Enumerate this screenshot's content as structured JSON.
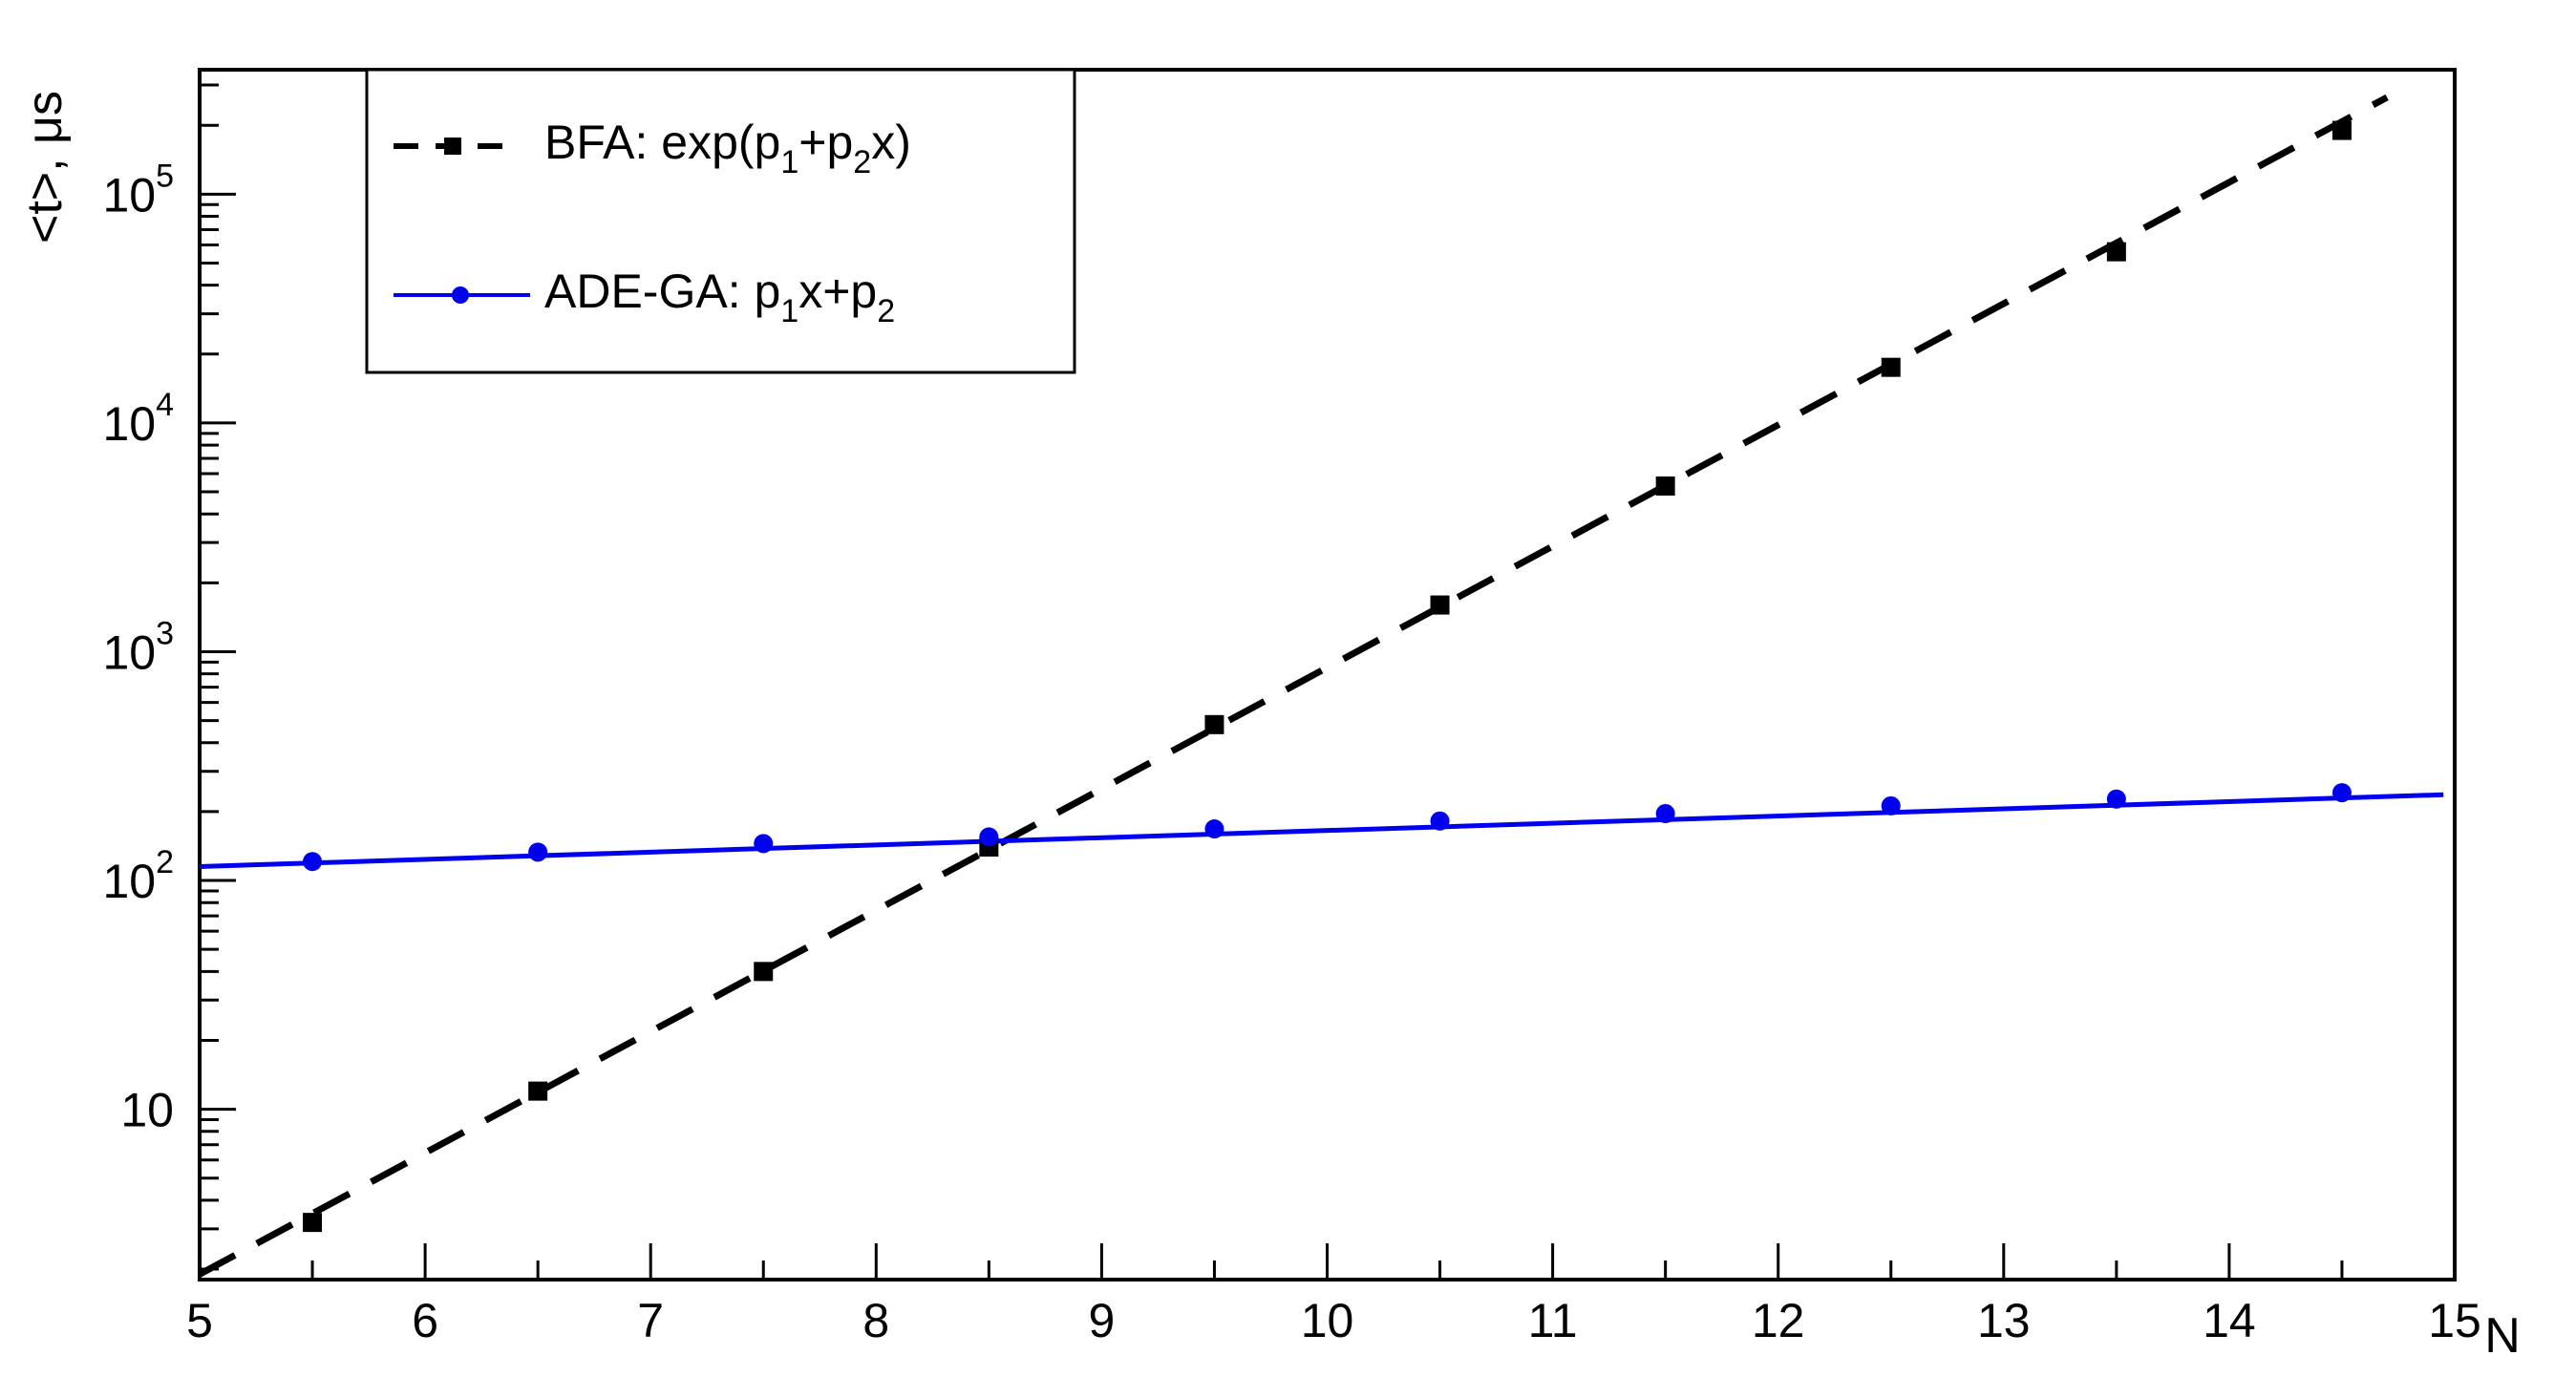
{
  "chart_data": {
    "type": "scatter",
    "title": "",
    "xlabel": "N",
    "ylabel": "<t>, μs",
    "xlim": [
      5,
      15
    ],
    "ylim": [
      1.8,
      350000
    ],
    "yscale": "log",
    "grid": false,
    "legend_position": "top-left",
    "x_ticks": [
      "5",
      "6",
      "7",
      "8",
      "9",
      "10",
      "11",
      "12",
      "13",
      "14",
      "15"
    ],
    "y_ticks": [
      {
        "value": 10,
        "base": "10",
        "exp": ""
      },
      {
        "value": 100,
        "base": "10",
        "exp": "2"
      },
      {
        "value": 1000,
        "base": "10",
        "exp": "3"
      },
      {
        "value": 10000,
        "base": "10",
        "exp": "4"
      },
      {
        "value": 100000,
        "base": "10",
        "exp": "5"
      }
    ],
    "series": [
      {
        "name": "BFA",
        "color": "#000000",
        "marker": "square",
        "line_style": "dashed",
        "x": [
          5.5,
          6.5,
          7.5,
          8.5,
          9.5,
          10.5,
          11.5,
          12.5,
          13.5,
          14.5
        ],
        "y": [
          3.2,
          12,
          40,
          140,
          480,
          1600,
          5300,
          17500,
          56000,
          190000
        ],
        "fit": {
          "x": [
            5.0,
            14.7
          ],
          "y": [
            1.9,
            265000
          ]
        }
      },
      {
        "name": "ADE-GA",
        "color": "#0000ee",
        "marker": "circle",
        "line_style": "solid",
        "x": [
          5.5,
          6.5,
          7.5,
          8.5,
          9.5,
          10.5,
          11.5,
          12.5,
          13.5,
          14.5
        ],
        "y": [
          121,
          133,
          145,
          155,
          168,
          182,
          196,
          212,
          227,
          242
        ],
        "fit": {
          "x": [
            5.0,
            14.95
          ],
          "y": [
            115,
            237
          ]
        }
      }
    ],
    "legend": [
      {
        "prefix": "BFA:  exp(p",
        "sub1": "1",
        "mid": "+p",
        "sub2": "2",
        "suffix": "x)"
      },
      {
        "prefix": "ADE-GA: p",
        "sub1": "1",
        "mid": "x+p",
        "sub2": "2",
        "suffix": ""
      }
    ]
  }
}
